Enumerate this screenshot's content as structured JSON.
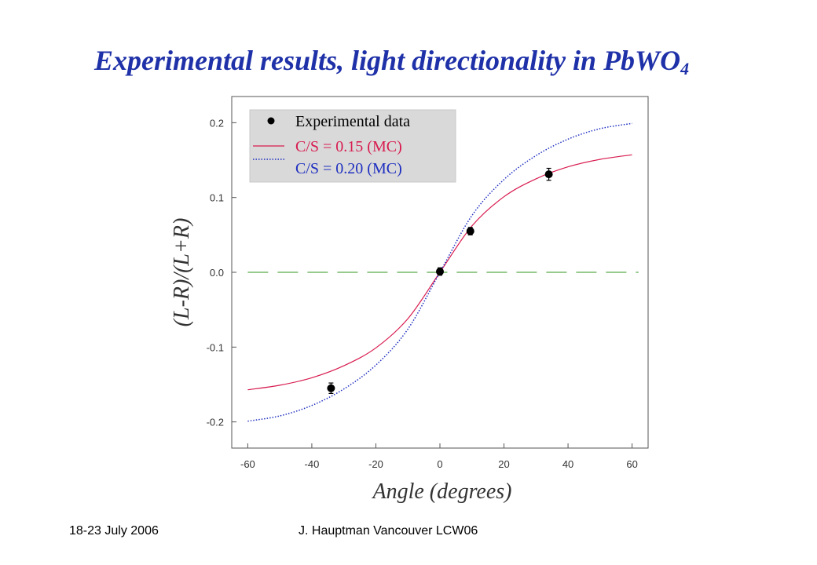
{
  "slide": {
    "title_main": "Experimental results, light directionality  in PbWO",
    "title_subscript": "4",
    "footer_date": "18-23 July 2006",
    "footer_author": "J. Hauptman Vancouver LCW06"
  },
  "chart_data": {
    "type": "line",
    "title": "",
    "xlabel": "Angle (degrees)",
    "ylabel": "(L-R)/(L+R)",
    "xlim": [
      -65,
      65
    ],
    "ylim": [
      -0.235,
      0.235
    ],
    "xticks": [
      -60,
      -40,
      -20,
      0,
      20,
      40,
      60
    ],
    "xtick_labels": [
      "-60",
      "-40",
      "-20",
      "0",
      "20",
      "40",
      "60"
    ],
    "yticks": [
      0.2,
      0.1,
      0.0,
      -0.1,
      -0.2
    ],
    "ytick_labels": [
      "0.2",
      "0.1",
      "0.0",
      "-0.1",
      "-0.2"
    ],
    "grid": false,
    "legend_position": "top-left",
    "series": [
      {
        "name": "Experimental data",
        "kind": "scatter",
        "color": "#000000",
        "points": [
          {
            "x": -34,
            "y": -0.155,
            "err": 0.007
          },
          {
            "x": 0,
            "y": 0.001,
            "err": 0.005
          },
          {
            "x": 9.5,
            "y": 0.055,
            "err": 0.005
          },
          {
            "x": 34,
            "y": 0.131,
            "err": 0.008
          }
        ]
      },
      {
        "name": "C/S = 0.15 (MC)",
        "kind": "line",
        "style": "solid",
        "color": "#d81b4f",
        "x": [
          -60,
          -50,
          -40,
          -30,
          -20,
          -10,
          0,
          10,
          20,
          30,
          40,
          50,
          60
        ],
        "y": [
          -0.157,
          -0.151,
          -0.141,
          -0.125,
          -0.101,
          -0.062,
          0.0,
          0.062,
          0.101,
          0.125,
          0.141,
          0.151,
          0.157
        ]
      },
      {
        "name": "C/S = 0.20 (MC)",
        "kind": "line",
        "style": "dotted",
        "color": "#1f2fc0",
        "x": [
          -60,
          -50,
          -40,
          -30,
          -20,
          -10,
          0,
          10,
          20,
          30,
          40,
          50,
          60
        ],
        "y": [
          -0.199,
          -0.192,
          -0.178,
          -0.156,
          -0.124,
          -0.076,
          0.0,
          0.076,
          0.124,
          0.156,
          0.178,
          0.192,
          0.199
        ]
      },
      {
        "name": "",
        "kind": "reference-line",
        "style": "dashed",
        "color": "#5aaa4a",
        "x": [
          -60,
          62
        ],
        "y": [
          0.0,
          0.0
        ]
      }
    ]
  }
}
